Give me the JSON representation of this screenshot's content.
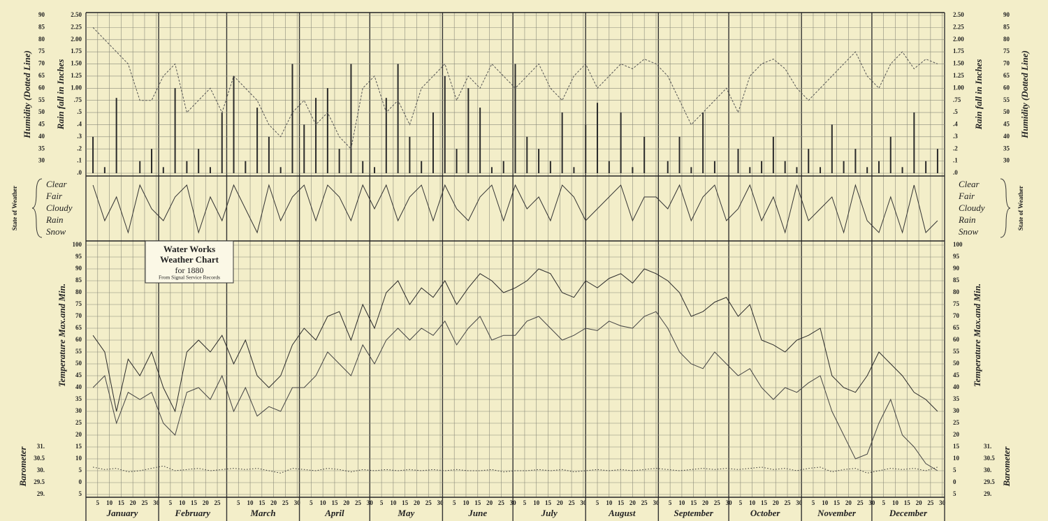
{
  "x_axis": {
    "xlim": [
      0,
      366
    ],
    "x": [
      3,
      8,
      13,
      18,
      23,
      28,
      33,
      38,
      43,
      48,
      53,
      58,
      63,
      68,
      73,
      78,
      83,
      88,
      93,
      98,
      103,
      108,
      113,
      118,
      123,
      128,
      133,
      138,
      143,
      148,
      153,
      158,
      163,
      168,
      173,
      178,
      183,
      188,
      193,
      198,
      203,
      208,
      213,
      218,
      223,
      228,
      233,
      238,
      243,
      248,
      253,
      258,
      263,
      268,
      273,
      278,
      283,
      288,
      293,
      298,
      303,
      308,
      313,
      318,
      323,
      328,
      333,
      338,
      343,
      348,
      353,
      358,
      363
    ],
    "months": [
      {
        "value": 0,
        "label": "January"
      },
      {
        "value": 31,
        "label": "February"
      },
      {
        "value": 60,
        "label": "March"
      },
      {
        "value": 91,
        "label": "April"
      },
      {
        "value": 121,
        "label": "May"
      },
      {
        "value": 152,
        "label": "June"
      },
      {
        "value": 182,
        "label": "July"
      },
      {
        "value": 213,
        "label": "August"
      },
      {
        "value": 244,
        "label": "September"
      },
      {
        "value": 274,
        "label": "October"
      },
      {
        "value": 305,
        "label": "November"
      },
      {
        "value": 335,
        "label": "December"
      }
    ],
    "xticks": [
      5,
      10,
      15,
      20,
      25,
      30,
      {
        "value": 36,
        "label": "5"
      },
      {
        "value": 41,
        "label": "10"
      },
      {
        "value": 46,
        "label": "15"
      },
      {
        "value": 51,
        "label": "20"
      },
      {
        "value": 56,
        "label": "25"
      },
      {
        "value": 65,
        "label": "5"
      },
      {
        "value": 70,
        "label": "10"
      },
      {
        "value": 75,
        "label": "15"
      },
      {
        "value": 80,
        "label": "20"
      },
      {
        "value": 85,
        "label": "25"
      },
      {
        "value": 90,
        "label": "30"
      },
      {
        "value": 96,
        "label": "5"
      },
      {
        "value": 101,
        "label": "10"
      },
      {
        "value": 106,
        "label": "15"
      },
      {
        "value": 111,
        "label": "20"
      },
      {
        "value": 116,
        "label": "25"
      },
      {
        "value": 121,
        "label": "30"
      },
      {
        "value": 126,
        "label": "5"
      },
      {
        "value": 131,
        "label": "10"
      },
      {
        "value": 136,
        "label": "15"
      },
      {
        "value": 141,
        "label": "20"
      },
      {
        "value": 146,
        "label": "25"
      },
      {
        "value": 151,
        "label": "30"
      },
      {
        "value": 157,
        "label": "5"
      },
      {
        "value": 162,
        "label": "10"
      },
      {
        "value": 167,
        "label": "15"
      },
      {
        "value": 172,
        "label": "20"
      },
      {
        "value": 177,
        "label": "25"
      },
      {
        "value": 182,
        "label": "30"
      },
      {
        "value": 187,
        "label": "5"
      },
      {
        "value": 192,
        "label": "10"
      },
      {
        "value": 197,
        "label": "15"
      },
      {
        "value": 202,
        "label": "20"
      },
      {
        "value": 207,
        "label": "25"
      },
      {
        "value": 212,
        "label": "30"
      },
      {
        "value": 218,
        "label": "5"
      },
      {
        "value": 223,
        "label": "10"
      },
      {
        "value": 228,
        "label": "15"
      },
      {
        "value": 233,
        "label": "20"
      },
      {
        "value": 238,
        "label": "25"
      },
      {
        "value": 243,
        "label": "30"
      },
      {
        "value": 249,
        "label": "5"
      },
      {
        "value": 254,
        "label": "10"
      },
      {
        "value": 259,
        "label": "15"
      },
      {
        "value": 264,
        "label": "20"
      },
      {
        "value": 269,
        "label": "25"
      },
      {
        "value": 274,
        "label": "30"
      },
      {
        "value": 279,
        "label": "5"
      },
      {
        "value": 284,
        "label": "10"
      },
      {
        "value": 289,
        "label": "15"
      },
      {
        "value": 294,
        "label": "20"
      },
      {
        "value": 299,
        "label": "25"
      },
      {
        "value": 304,
        "label": "30"
      },
      {
        "value": 310,
        "label": "5"
      },
      {
        "value": 315,
        "label": "10"
      },
      {
        "value": 320,
        "label": "15"
      },
      {
        "value": 325,
        "label": "20"
      },
      {
        "value": 330,
        "label": "25"
      },
      {
        "value": 335,
        "label": "30"
      },
      {
        "value": 340,
        "label": "5"
      },
      {
        "value": 345,
        "label": "10"
      },
      {
        "value": 350,
        "label": "15"
      },
      {
        "value": 355,
        "label": "20"
      },
      {
        "value": 360,
        "label": "25"
      },
      {
        "value": 365,
        "label": "30"
      }
    ]
  },
  "chart_data": [
    {
      "type": "combo",
      "ylabel": "Rain fall in Inches",
      "y2label": "Humidity (Dotted Line)",
      "ylim": [
        0,
        2.5
      ],
      "yscale": "piecewise",
      "yticks": [
        {
          "value": 0,
          "label": ".0"
        },
        {
          "value": 0.1,
          "label": ".1"
        },
        {
          "value": 0.2,
          "label": ".2"
        },
        {
          "value": 0.3,
          "label": ".3"
        },
        {
          "value": 0.4,
          "label": ".4"
        },
        {
          "value": 0.5,
          "label": ".5"
        },
        {
          "value": 0.75,
          "label": ".75"
        },
        {
          "value": 1,
          "label": "1.00"
        },
        {
          "value": 1.25,
          "label": "1.25"
        },
        {
          "value": 1.5,
          "label": "1.50"
        },
        {
          "value": 1.75,
          "label": "1.75"
        },
        {
          "value": 2,
          "label": "2.00"
        },
        {
          "value": 2.25,
          "label": "2.25"
        },
        {
          "value": 2.5,
          "label": "2.50"
        }
      ],
      "y2lim": [
        25,
        90
      ],
      "y2ticks": [
        30,
        35,
        40,
        45,
        50,
        55,
        60,
        65,
        70,
        75,
        80,
        85,
        90
      ],
      "grid": true,
      "series": [
        {
          "type": "bar",
          "color": "#2a2a2a",
          "values": [
            0.3,
            0.05,
            0.8,
            0,
            0.1,
            0.2,
            0.05,
            1.0,
            0.1,
            0.2,
            0.05,
            0.5,
            1.25,
            0.1,
            0.6,
            0.3,
            0.05,
            1.5,
            0.4,
            0.8,
            1.0,
            0.2,
            1.5,
            0.1,
            0.05,
            0.8,
            1.5,
            0.3,
            0.1,
            0.5,
            1.25,
            0.2,
            1.0,
            0.6,
            0.05,
            0.1,
            1.5,
            0.3,
            0.2,
            0.1,
            0.5,
            0.05,
            0.4,
            0.7,
            0.1,
            0.5,
            0.05,
            0.3,
            0,
            0.1,
            0.3,
            0.05,
            0.5,
            0.1,
            0,
            0.2,
            0.05,
            0.1,
            0.3,
            0.1,
            0.05,
            0.2,
            0.05,
            0.4,
            0.1,
            0.2,
            0.05,
            0.1,
            0.3,
            0.05,
            0.5,
            0.1,
            0.2
          ]
        },
        {
          "type": "line",
          "axis": "y2",
          "dash": "dotted",
          "color": "#555555",
          "values": [
            85,
            80,
            75,
            70,
            55,
            55,
            65,
            70,
            50,
            55,
            60,
            50,
            65,
            60,
            55,
            45,
            40,
            50,
            55,
            45,
            50,
            40,
            35,
            60,
            65,
            50,
            55,
            45,
            60,
            65,
            70,
            55,
            65,
            60,
            70,
            65,
            60,
            65,
            70,
            60,
            55,
            65,
            70,
            60,
            65,
            70,
            68,
            72,
            70,
            65,
            55,
            45,
            50,
            55,
            60,
            50,
            65,
            70,
            72,
            68,
            60,
            55,
            60,
            65,
            70,
            75,
            65,
            60,
            70,
            75,
            68,
            72,
            70
          ]
        }
      ]
    },
    {
      "type": "line",
      "ylabel": "State of Weather",
      "ycategories": [
        "Clear",
        "Fair",
        "Cloudy",
        "Rain",
        "Snow"
      ],
      "color": "#333333",
      "values": [
        "Clear",
        "Rain",
        "Fair",
        "Snow",
        "Clear",
        "Cloudy",
        "Rain",
        "Fair",
        "Clear",
        "Snow",
        "Fair",
        "Rain",
        "Clear",
        "Cloudy",
        "Snow",
        "Clear",
        "Rain",
        "Fair",
        "Clear",
        "Rain",
        "Clear",
        "Fair",
        "Rain",
        "Clear",
        "Cloudy",
        "Clear",
        "Rain",
        "Fair",
        "Clear",
        "Rain",
        "Clear",
        "Cloudy",
        "Rain",
        "Fair",
        "Clear",
        "Rain",
        "Clear",
        "Cloudy",
        "Fair",
        "Rain",
        "Clear",
        "Fair",
        "Rain",
        "Cloudy",
        "Fair",
        "Clear",
        "Rain",
        "Fair",
        "Fair",
        "Cloudy",
        "Clear",
        "Rain",
        "Fair",
        "Clear",
        "Rain",
        "Cloudy",
        "Clear",
        "Rain",
        "Fair",
        "Snow",
        "Clear",
        "Rain",
        "Cloudy",
        "Fair",
        "Snow",
        "Clear",
        "Rain",
        "Snow",
        "Fair",
        "Snow",
        "Clear",
        "Snow",
        "Rain"
      ]
    },
    {
      "type": "line",
      "title": [
        "Water Works",
        "Weather Chart",
        "for 1880"
      ],
      "subtitle": "From Signal Service Records",
      "ylabel": "Temperature Max.and Min.",
      "y2label": "Barometer",
      "ylim": [
        -5,
        100
      ],
      "yticks": [
        {
          "value": -5,
          "label": "5"
        },
        0,
        5,
        10,
        15,
        20,
        25,
        30,
        35,
        40,
        45,
        50,
        55,
        60,
        65,
        70,
        75,
        80,
        85,
        90,
        95,
        100
      ],
      "y2lim": [
        29,
        39.5
      ],
      "y2ticks": [
        {
          "value": 29,
          "label": "29."
        },
        29.5,
        {
          "value": 30,
          "label": "30."
        },
        30.5,
        {
          "value": 31,
          "label": "31."
        }
      ],
      "grid": true,
      "series": [
        {
          "color": "#2a2a2a",
          "values": [
            62,
            55,
            30,
            52,
            45,
            55,
            40,
            30,
            55,
            60,
            55,
            62,
            50,
            60,
            45,
            40,
            45,
            58,
            65,
            60,
            70,
            72,
            60,
            75,
            65,
            80,
            85,
            75,
            82,
            78,
            85,
            75,
            82,
            88,
            85,
            80,
            82,
            85,
            90,
            88,
            80,
            78,
            85,
            82,
            86,
            88,
            84,
            90,
            88,
            85,
            80,
            70,
            72,
            76,
            78,
            70,
            75,
            60,
            58,
            55,
            60,
            62,
            65,
            45,
            40,
            38,
            45,
            55,
            50,
            45,
            38,
            35,
            30
          ]
        },
        {
          "color": "#444444",
          "values": [
            40,
            45,
            25,
            38,
            35,
            38,
            25,
            20,
            38,
            40,
            35,
            45,
            30,
            40,
            28,
            32,
            30,
            40,
            40,
            45,
            55,
            50,
            45,
            58,
            50,
            60,
            65,
            60,
            65,
            62,
            68,
            58,
            65,
            70,
            60,
            62,
            62,
            68,
            70,
            65,
            60,
            62,
            65,
            64,
            68,
            66,
            65,
            70,
            72,
            65,
            55,
            50,
            48,
            55,
            50,
            45,
            48,
            40,
            35,
            40,
            38,
            42,
            45,
            30,
            20,
            10,
            12,
            25,
            35,
            20,
            15,
            8,
            5
          ]
        },
        {
          "axis": "y2",
          "dash": "dotted",
          "color": "#333333",
          "values": [
            30.15,
            30.05,
            30.1,
            29.95,
            30.0,
            30.1,
            30.2,
            30.0,
            30.05,
            30.1,
            30.0,
            30.05,
            30.1,
            30.05,
            30.1,
            30.0,
            29.9,
            30.1,
            30.05,
            30.0,
            30.1,
            30.05,
            29.95,
            30.05,
            30.0,
            30.05,
            30.0,
            30.05,
            30.0,
            30.05,
            30.0,
            30.05,
            30.0,
            30.0,
            30.05,
            29.95,
            30.0,
            30.0,
            30.05,
            30.0,
            30.05,
            29.95,
            30.0,
            30.05,
            30.0,
            30.05,
            30.0,
            30.05,
            30.1,
            30.05,
            30.0,
            30.05,
            30.1,
            30.05,
            30.1,
            30.05,
            30.1,
            30.15,
            30.05,
            30.1,
            30.0,
            30.1,
            30.15,
            29.95,
            30.05,
            30.1,
            29.9,
            30.0,
            30.1,
            30.05,
            30.1,
            30.0,
            30.15
          ]
        }
      ]
    }
  ]
}
